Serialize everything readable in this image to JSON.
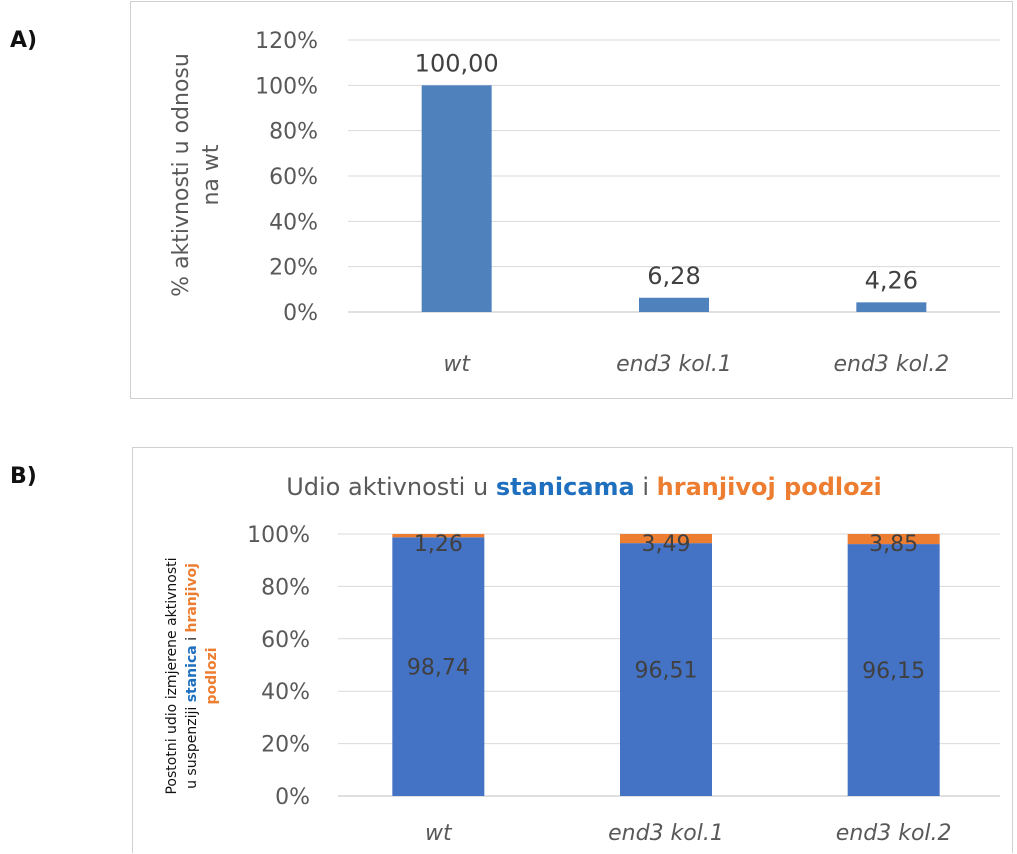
{
  "panels": {
    "a": "A)",
    "b": "B)"
  },
  "chart_data": [
    {
      "type": "bar",
      "title": "",
      "xlabel": "",
      "ylabel_lines": [
        "% aktivnosti u odnosu",
        "na wt"
      ],
      "categories": [
        "wt",
        "end3 kol.1",
        "end3 kol.2"
      ],
      "values": [
        100.0,
        6.28,
        4.26
      ],
      "data_labels": [
        "100,00",
        "6,28",
        "4,26"
      ],
      "yticks": [
        "0%",
        "20%",
        "40%",
        "60%",
        "80%",
        "100%",
        "120%"
      ],
      "ylim": [
        0,
        120
      ],
      "grid": true,
      "colors": {
        "bar": "#4f81bd"
      }
    },
    {
      "type": "bar",
      "stacked": true,
      "title": {
        "prefix": "Udio aktivnosti u ",
        "part1": "stanicama",
        "mid": " i ",
        "part2": "hranjivoj podlozi"
      },
      "ylabel": {
        "line1": "Postotni udio izmjerene aktivnosti",
        "line2_prefix": "u suspenziji ",
        "line2_blue": "stanica",
        "line2_mid": " i ",
        "line2_orange": "hranjivoj",
        "line3_orange": "podlozi"
      },
      "categories": [
        "wt",
        "end3 kol.1",
        "end3 kol.2"
      ],
      "series": [
        {
          "values": [
            98.74,
            96.51,
            96.15
          ],
          "labels": [
            "98,74",
            "96,51",
            "96,15"
          ],
          "color": "#4472c4"
        },
        {
          "values": [
            1.26,
            3.49,
            3.85
          ],
          "labels": [
            "1,26",
            "3,49",
            "3,85"
          ],
          "color": "#ed7d31"
        }
      ],
      "yticks": [
        "0%",
        "20%",
        "40%",
        "60%",
        "80%",
        "100%"
      ],
      "ylim": [
        0,
        100
      ],
      "grid": true,
      "colors": {
        "blue_text": "#1f6fbf",
        "orange_text": "#ed7d31"
      }
    }
  ]
}
